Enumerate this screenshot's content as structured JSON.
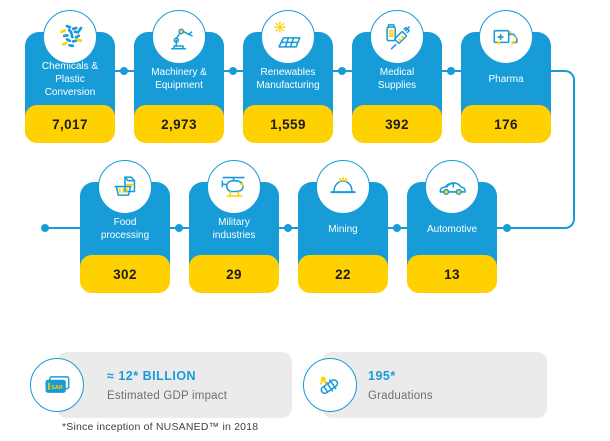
{
  "colors": {
    "blue": "#189CD8",
    "yellow": "#FFD100",
    "card_label": "#FFFFFF",
    "value_text": "#1C1C1C",
    "box_bg": "#EBEBEB",
    "title_text": "#189CD8",
    "muted_text": "#6D6E71",
    "footnote_text": "#414042",
    "background": "#FFFFFF"
  },
  "rows": [
    {
      "cards": [
        {
          "label": "Chemicals &\nPlastic\nConversion",
          "value": "7,017",
          "icon": "plastic-pellets-icon"
        },
        {
          "label": "Machinery &\nEquipment",
          "value": "2,973",
          "icon": "robot-arm-icon"
        },
        {
          "label": "Renewables\nManufacturing",
          "value": "1,559",
          "icon": "solar-panel-icon"
        },
        {
          "label": "Medical\nSupplies",
          "value": "392",
          "icon": "syringe-icon"
        },
        {
          "label": "Pharma",
          "value": "176",
          "icon": "medical-van-icon"
        }
      ]
    },
    {
      "cards": [
        {
          "label": "Food\nprocessing",
          "value": "302",
          "icon": "food-basket-icon"
        },
        {
          "label": "Military\nindustries",
          "value": "29",
          "icon": "helicopter-icon"
        },
        {
          "label": "Mining",
          "value": "22",
          "icon": "hard-hat-icon"
        },
        {
          "label": "Automotive",
          "value": "13",
          "icon": "car-icon"
        }
      ]
    }
  ],
  "summary": [
    {
      "title": "≈ 12* BILLION",
      "subtitle": "Estimated GDP impact",
      "icon": "sar-banknote-icon"
    },
    {
      "title": "195*",
      "subtitle": "Graduations",
      "icon": "diploma-certificate-icon"
    }
  ],
  "footnote": "*Since inception of NUSANED™ in 2018"
}
